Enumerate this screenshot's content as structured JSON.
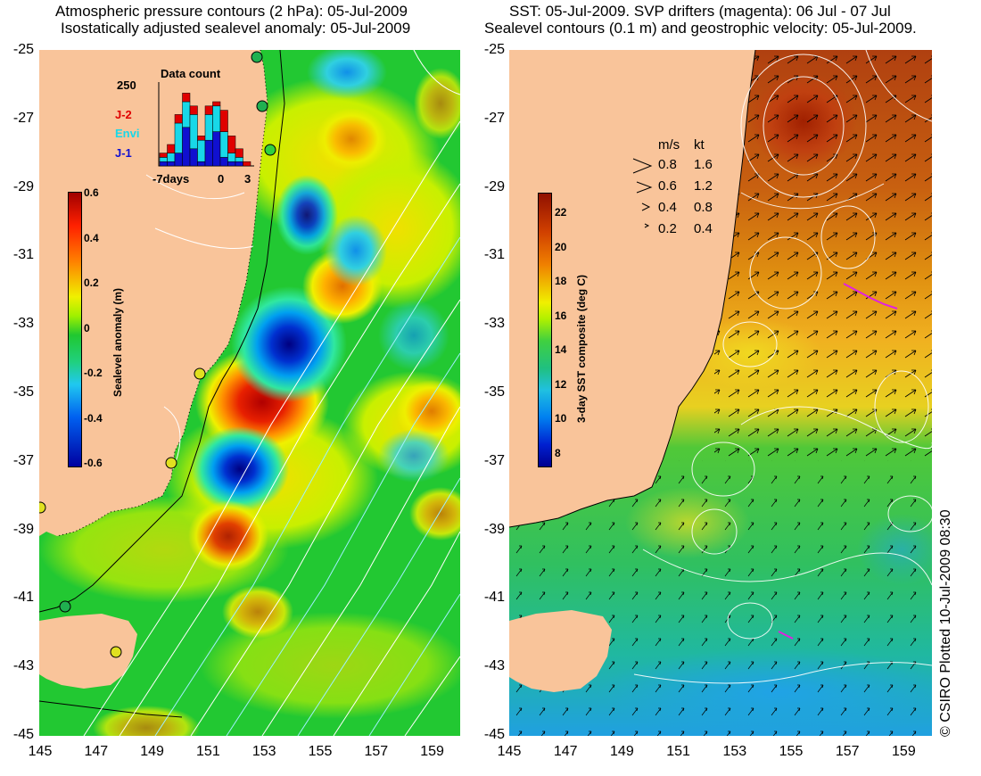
{
  "left_panel": {
    "title_line1": "Atmospheric pressure contours (2 hPa): 05-Jul-2009",
    "title_line2": "Isostatically adjusted sealevel anomaly: 05-Jul-2009",
    "colorbar": {
      "label": "Sealevel anomaly (m)",
      "ticks": [
        "0.6",
        "0.4",
        "0.2",
        "0",
        "-0.2",
        "-0.4",
        "-0.6"
      ],
      "min": -0.6,
      "max": 0.6
    },
    "inset": {
      "title": "Data count",
      "y_max_label": "250",
      "x_labels": [
        "-7days",
        "0",
        "3"
      ],
      "legend": [
        {
          "name": "J-2",
          "color": "#e00000"
        },
        {
          "name": "Envi",
          "color": "#18d8e8"
        },
        {
          "name": "J-1",
          "color": "#1010d0"
        }
      ],
      "bars": [
        {
          "j1": 0.05,
          "envi": 0.05,
          "j2": 0.05
        },
        {
          "j1": 0.05,
          "envi": 0.1,
          "j2": 0.1
        },
        {
          "j1": 0.15,
          "envi": 0.35,
          "j2": 0.1
        },
        {
          "j1": 0.45,
          "envi": 0.3,
          "j2": 0.1
        },
        {
          "j1": 0.2,
          "envi": 0.4,
          "j2": 0.1
        },
        {
          "j1": 0.05,
          "envi": 0.25,
          "j2": 0.05
        },
        {
          "j1": 0.3,
          "envi": 0.3,
          "j2": 0.1
        },
        {
          "j1": 0.4,
          "envi": 0.3,
          "j2": 0.05
        },
        {
          "j1": 0.1,
          "envi": 0.3,
          "j2": 0.25
        },
        {
          "j1": 0.05,
          "envi": 0.1,
          "j2": 0.2
        },
        {
          "j1": 0.05,
          "envi": 0.05,
          "j2": 0.1
        },
        {
          "j1": 0.0,
          "envi": 0.0,
          "j2": 0.05
        }
      ]
    }
  },
  "right_panel": {
    "title_line1": "SST: 05-Jul-2009. SVP drifters (magenta): 06 Jul - 07 Jul",
    "title_line2": "Sealevel contours (0.1 m) and geostrophic velocity: 05-Jul-2009.",
    "colorbar": {
      "label": "3-day SST composite (deg C)",
      "ticks": [
        "22",
        "20",
        "18",
        "16",
        "14",
        "12",
        "10",
        "8"
      ],
      "min": 7,
      "max": 23
    },
    "velocity_key": {
      "header_ms": "m/s",
      "header_kt": "kt",
      "rows": [
        {
          "ms": "0.8",
          "kt": "1.6"
        },
        {
          "ms": "0.6",
          "kt": "1.2"
        },
        {
          "ms": "0.4",
          "kt": "0.8"
        },
        {
          "ms": "0.2",
          "kt": "0.4"
        }
      ]
    }
  },
  "axes": {
    "y_ticks": [
      "-25",
      "-27",
      "-29",
      "-31",
      "-33",
      "-35",
      "-37",
      "-39",
      "-41",
      "-43",
      "-45"
    ],
    "x_ticks": [
      "145",
      "147",
      "149",
      "151",
      "153",
      "155",
      "157",
      "159"
    ],
    "lat_range": [
      -45,
      -25
    ],
    "lon_range": [
      145,
      160
    ]
  },
  "credit": "© CSIRO Plotted 10-Jul-2009 08:30",
  "colors": {
    "land": "#f9c49a",
    "ocean_base": "#22c832",
    "contour": "#ffffff",
    "drifter": "#e020e0"
  }
}
